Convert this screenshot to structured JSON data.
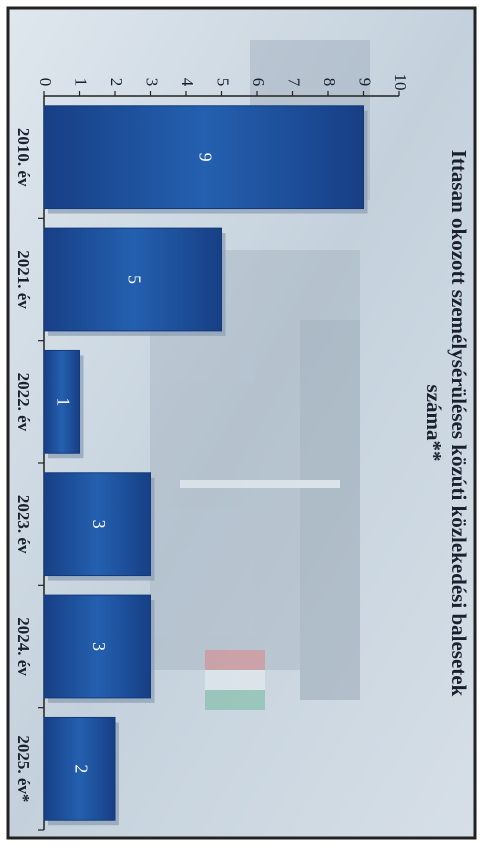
{
  "chart_data": {
    "type": "bar",
    "title": "Ittasan okozott személysérüléses közúti közlekedési balesetek száma**",
    "categories": [
      "2010. év",
      "2021. év",
      "2022. év",
      "2023. év",
      "2024. év",
      "2025. év*"
    ],
    "values": [
      9,
      5,
      1,
      3,
      3,
      2
    ],
    "ylim": [
      0,
      10
    ],
    "yticks": [
      "0",
      "1",
      "2",
      "3",
      "4",
      "5",
      "6",
      "7",
      "8",
      "9",
      "10"
    ],
    "xlabel": "",
    "ylabel": "",
    "orientation": "rotated 90° clockwise",
    "grid": false,
    "legend": "none",
    "colors": {
      "bar": "#1f55a3",
      "bar_dark": "#123a7a",
      "bar_shadow": "#8a9cb4",
      "title": "#1a2030",
      "background_photo": "#c7d4de"
    }
  }
}
